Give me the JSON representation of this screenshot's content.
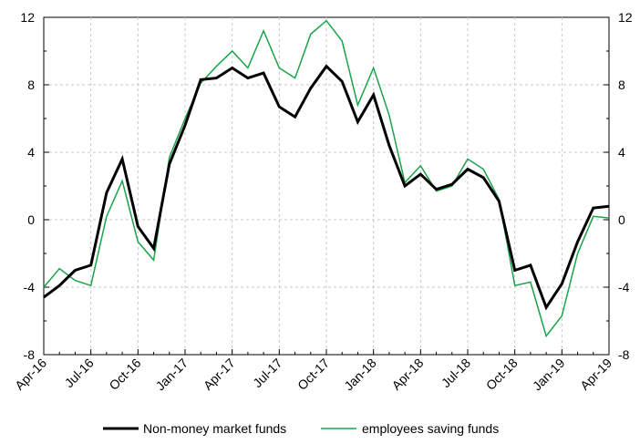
{
  "chart_data": {
    "type": "line",
    "x": [
      "Apr-16",
      "May-16",
      "Jun-16",
      "Jul-16",
      "Aug-16",
      "Sep-16",
      "Oct-16",
      "Nov-16",
      "Dec-16",
      "Jan-17",
      "Feb-17",
      "Mar-17",
      "Apr-17",
      "May-17",
      "Jun-17",
      "Jul-17",
      "Aug-17",
      "Sep-17",
      "Oct-17",
      "Nov-17",
      "Dec-17",
      "Jan-18",
      "Feb-18",
      "Mar-18",
      "Apr-18",
      "May-18",
      "Jun-18",
      "Jul-18",
      "Aug-18",
      "Sep-18",
      "Oct-18",
      "Nov-18",
      "Dec-18",
      "Jan-19",
      "Feb-19",
      "Mar-19",
      "Apr-19"
    ],
    "x_tick_labels": [
      "Apr-16",
      "Jul-16",
      "Oct-16",
      "Jan-17",
      "Apr-17",
      "Jul-17",
      "Oct-17",
      "Jan-18",
      "Apr-18",
      "Jul-18",
      "Oct-18",
      "Jan-19",
      "Apr-19"
    ],
    "series": [
      {
        "name": "Non-money market funds",
        "color": "#000000",
        "values": [
          -4.6,
          -3.9,
          -3.0,
          -2.7,
          1.6,
          3.6,
          -0.4,
          -1.7,
          3.3,
          5.6,
          8.3,
          8.4,
          9.0,
          8.4,
          8.7,
          6.7,
          6.1,
          7.8,
          9.1,
          8.2,
          5.8,
          7.4,
          4.4,
          2.0,
          2.7,
          1.8,
          2.1,
          3.0,
          2.5,
          1.1,
          -3.0,
          -2.7,
          -5.2,
          -3.8,
          -1.3,
          0.7,
          0.8
        ]
      },
      {
        "name": "employees saving funds",
        "color": "#1ba34a",
        "values": [
          -4.0,
          -2.9,
          -3.6,
          -3.9,
          0.2,
          2.3,
          -1.3,
          -2.4,
          3.7,
          6.0,
          8.1,
          9.1,
          10.0,
          9.0,
          11.2,
          9.0,
          8.4,
          11.0,
          11.8,
          10.6,
          6.8,
          9.0,
          6.2,
          2.2,
          3.2,
          1.7,
          2.0,
          3.6,
          3.0,
          1.2,
          -3.9,
          -3.7,
          -6.9,
          -5.7,
          -2.0,
          0.2,
          0.1
        ]
      }
    ],
    "ylim": [
      -8,
      12
    ],
    "y_ticks_left": [
      "12",
      "8",
      "4",
      "0",
      "-4",
      "-8"
    ],
    "y_ticks_right": [
      "12",
      "8",
      "4",
      "0",
      "-4",
      "-8"
    ],
    "grid": "dashed vertical gridlines at labeled quarters",
    "legend_position": "bottom-center"
  }
}
